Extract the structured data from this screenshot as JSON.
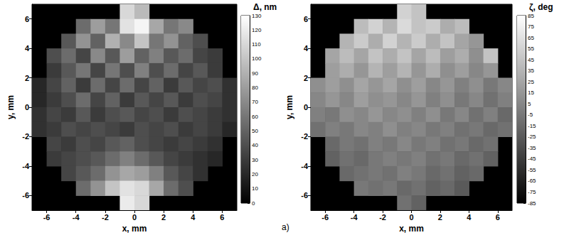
{
  "chart_data": [
    {
      "type": "heatmap",
      "x_label": "x, mm",
      "y_label": "y, mm",
      "xlim": [
        -7,
        7
      ],
      "ylim": [
        -7,
        7
      ],
      "xticks": [
        -6,
        -4,
        -2,
        0,
        2,
        4,
        6
      ],
      "yticks": [
        -6,
        -4,
        -2,
        0,
        2,
        4,
        6
      ],
      "x": [
        -6.5,
        -5.5,
        -4.5,
        -3.5,
        -2.5,
        -1.5,
        -0.5,
        0.5,
        1.5,
        2.5,
        3.5,
        4.5,
        5.5,
        6.5
      ],
      "y": [
        6.5,
        5.5,
        4.5,
        3.5,
        2.5,
        1.5,
        0.5,
        -0.5,
        -1.5,
        -2.5,
        -3.5,
        -4.5,
        -5.5,
        -6.5
      ],
      "values": [
        [
          null,
          null,
          null,
          null,
          null,
          null,
          110,
          95,
          null,
          null,
          null,
          null,
          null,
          null
        ],
        [
          null,
          null,
          null,
          55,
          80,
          60,
          115,
          125,
          85,
          60,
          70,
          null,
          null,
          null
        ],
        [
          null,
          null,
          45,
          75,
          50,
          90,
          70,
          100,
          60,
          75,
          50,
          40,
          null,
          null
        ],
        [
          null,
          40,
          55,
          35,
          70,
          45,
          80,
          50,
          65,
          45,
          55,
          35,
          30,
          null
        ],
        [
          null,
          30,
          45,
          60,
          35,
          60,
          40,
          65,
          40,
          55,
          35,
          45,
          30,
          null
        ],
        [
          20,
          35,
          50,
          30,
          55,
          35,
          55,
          35,
          50,
          30,
          45,
          35,
          40,
          25
        ],
        [
          20,
          30,
          40,
          55,
          35,
          50,
          30,
          45,
          35,
          45,
          30,
          40,
          35,
          25
        ],
        [
          25,
          35,
          30,
          45,
          30,
          40,
          45,
          35,
          40,
          30,
          40,
          35,
          30,
          25
        ],
        [
          25,
          30,
          40,
          35,
          40,
          35,
          30,
          40,
          35,
          40,
          30,
          35,
          30,
          20
        ],
        [
          null,
          35,
          30,
          40,
          35,
          45,
          50,
          40,
          35,
          30,
          35,
          30,
          25,
          null
        ],
        [
          null,
          30,
          35,
          40,
          45,
          55,
          65,
          55,
          45,
          35,
          30,
          25,
          20,
          null
        ],
        [
          null,
          null,
          35,
          45,
          55,
          75,
          85,
          80,
          65,
          45,
          35,
          25,
          null,
          null
        ],
        [
          null,
          null,
          null,
          55,
          75,
          100,
          115,
          110,
          85,
          55,
          40,
          null,
          null,
          null
        ],
        [
          null,
          null,
          null,
          null,
          null,
          null,
          120,
          110,
          null,
          null,
          null,
          null,
          null,
          null
        ]
      ],
      "colorbar": {
        "title": "Δ, nm",
        "range": [
          0,
          130
        ],
        "ticks": [
          0,
          10,
          20,
          30,
          40,
          50,
          60,
          70,
          80,
          90,
          100,
          110,
          120,
          130
        ],
        "colors": [
          "#000000",
          "#ffffff"
        ]
      }
    },
    {
      "type": "heatmap",
      "x_label": "x, mm",
      "y_label": "y, mm",
      "xlim": [
        -7,
        7
      ],
      "ylim": [
        -7,
        7
      ],
      "xticks": [
        -6,
        -4,
        -2,
        0,
        2,
        4,
        6
      ],
      "yticks": [
        -6,
        -4,
        -2,
        0,
        2,
        4,
        6
      ],
      "x": [
        -6.5,
        -5.5,
        -4.5,
        -3.5,
        -2.5,
        -1.5,
        -0.5,
        0.5,
        1.5,
        2.5,
        3.5,
        4.5,
        5.5,
        6.5
      ],
      "y": [
        6.5,
        5.5,
        4.5,
        3.5,
        2.5,
        1.5,
        0.5,
        -0.5,
        -1.5,
        -2.5,
        -3.5,
        -4.5,
        -5.5,
        -6.5
      ],
      "values": [
        [
          null,
          null,
          null,
          null,
          null,
          null,
          55,
          45,
          null,
          null,
          null,
          null,
          null,
          null
        ],
        [
          null,
          null,
          null,
          40,
          55,
          35,
          60,
          45,
          50,
          30,
          40,
          null,
          null,
          null
        ],
        [
          null,
          null,
          35,
          50,
          30,
          55,
          35,
          50,
          30,
          45,
          25,
          15,
          null,
          null
        ],
        [
          null,
          25,
          40,
          25,
          45,
          30,
          45,
          25,
          40,
          20,
          30,
          10,
          45,
          null
        ],
        [
          null,
          20,
          30,
          15,
          35,
          20,
          35,
          15,
          30,
          10,
          20,
          5,
          15,
          null
        ],
        [
          10,
          20,
          10,
          25,
          15,
          25,
          10,
          20,
          5,
          15,
          0,
          10,
          -5,
          5
        ],
        [
          5,
          15,
          5,
          20,
          10,
          15,
          5,
          15,
          0,
          10,
          -5,
          5,
          -10,
          0
        ],
        [
          0,
          -5,
          10,
          5,
          15,
          5,
          10,
          0,
          10,
          -5,
          5,
          -10,
          0,
          -15
        ],
        [
          -10,
          0,
          -5,
          5,
          0,
          10,
          0,
          5,
          -5,
          0,
          -10,
          -5,
          -15,
          -10
        ],
        [
          null,
          -15,
          -5,
          -10,
          0,
          -5,
          5,
          -5,
          0,
          -10,
          -5,
          -15,
          -10,
          null
        ],
        [
          null,
          -20,
          -10,
          -15,
          -5,
          0,
          -5,
          0,
          -10,
          -5,
          -15,
          -10,
          -20,
          null
        ],
        [
          null,
          null,
          -15,
          -10,
          -5,
          -10,
          0,
          -5,
          -15,
          -10,
          -20,
          -15,
          null,
          null
        ],
        [
          null,
          null,
          null,
          -5,
          -10,
          -5,
          -15,
          -10,
          -20,
          -15,
          -25,
          null,
          null,
          null
        ],
        [
          null,
          null,
          null,
          null,
          null,
          null,
          -10,
          -20,
          null,
          null,
          null,
          null,
          null,
          null
        ]
      ],
      "colorbar": {
        "title": "ζ, deg",
        "range": [
          -85,
          85
        ],
        "ticks": [
          -85,
          -75,
          -65,
          -55,
          -45,
          -35,
          -25,
          -15,
          -5,
          5,
          15,
          25,
          35,
          45,
          55,
          65,
          75,
          85
        ],
        "colors": [
          "#000000",
          "#ffffff"
        ]
      }
    }
  ],
  "caption": "a)"
}
